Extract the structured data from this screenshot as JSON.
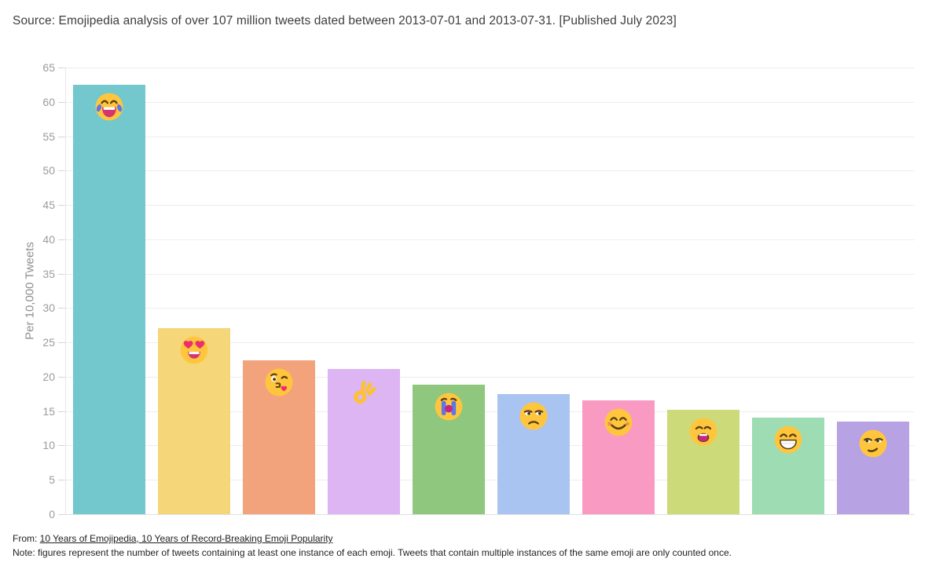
{
  "header": {
    "source_line": "Source: Emojipedia analysis of over 107 million tweets dated between 2013-07-01 and 2013-07-31. [Published July 2023]"
  },
  "chart_data": {
    "type": "bar",
    "title": "",
    "ylabel": "Per 10,000 Tweets",
    "ylim": [
      0,
      65
    ],
    "ytick_step": 5,
    "grid": true,
    "legend": "none",
    "categories": [
      "face-with-tears-of-joy",
      "smiling-face-with-heart-eyes",
      "face-blowing-a-kiss",
      "ok-hand",
      "loudly-crying-face",
      "unamused-face",
      "smiling-face-with-smiling-eyes",
      "weary-face",
      "beaming-face-with-smiling-eyes",
      "smirking-face"
    ],
    "emoji_icons": [
      "joy-emoji",
      "heart-eyes-emoji",
      "kiss-emoji",
      "ok-hand-emoji",
      "sob-emoji",
      "unamused-emoji",
      "blush-emoji",
      "weary-emoji",
      "grin-emoji",
      "smirk-emoji"
    ],
    "values": [
      62.5,
      27.1,
      22.4,
      21.1,
      18.9,
      17.5,
      16.6,
      15.2,
      14.1,
      13.5
    ],
    "bar_colors": [
      "#72c8cd",
      "#f5d678",
      "#f2a37c",
      "#dcb5f2",
      "#8ec77d",
      "#a9c4f0",
      "#f89ac2",
      "#cdda79",
      "#9edcb3",
      "#b7a3e3"
    ]
  },
  "footer": {
    "from_prefix": "From: ",
    "from_link": "10 Years of Emojipedia, 10 Years of Record-Breaking Emoji Popularity",
    "note": "Note: figures represent the number of tweets containing at least one instance of each emoji. Tweets that contain multiple instances of the same emoji are only counted once."
  }
}
